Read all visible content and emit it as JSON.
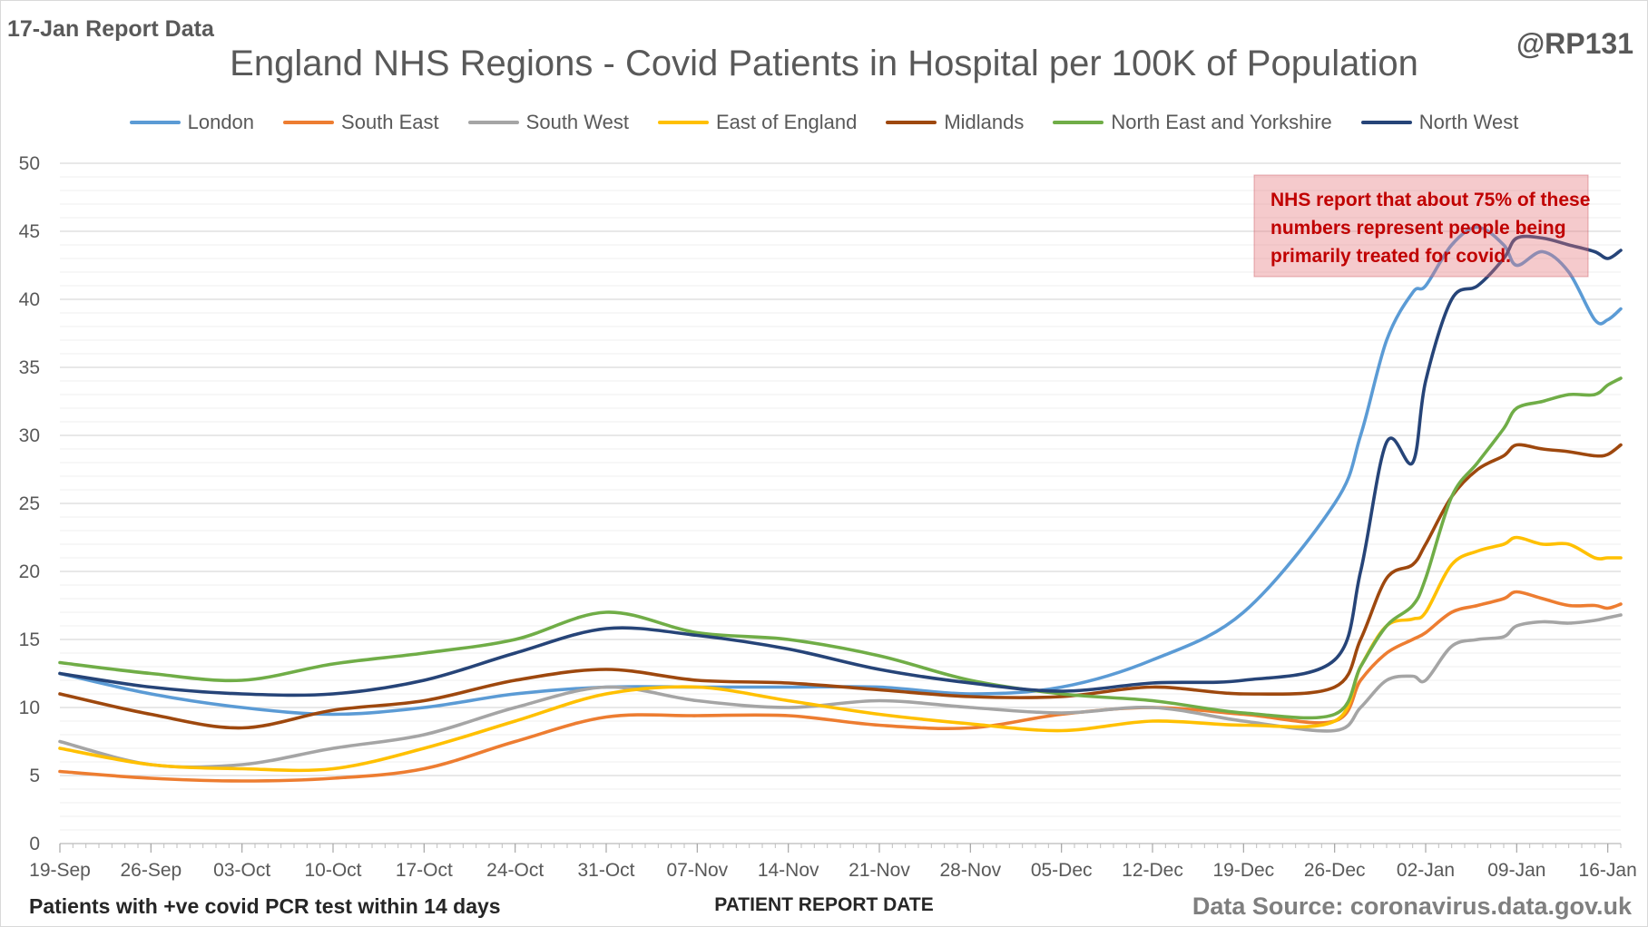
{
  "header": {
    "report_date": "17-Jan Report Data",
    "handle": "@RP131"
  },
  "footer": {
    "left_note": "Patients with +ve covid PCR test within 14 days",
    "source": "Data Source: coronavirus.data.gov.uk"
  },
  "chart_data": {
    "type": "line",
    "title": "England NHS Regions - Covid Patients in Hospital per 100K of Population",
    "xlabel": "PATIENT REPORT DATE",
    "ylabel": "",
    "ylim": [
      0,
      50
    ],
    "yticks": [
      0,
      5,
      10,
      15,
      20,
      25,
      30,
      35,
      40,
      45,
      50
    ],
    "grid": true,
    "minor_grid_step": 1,
    "legend_position": "top",
    "x_start": "2021-09-19",
    "x_end": "2022-01-17",
    "xtick_labels": [
      "19-Sep",
      "26-Sep",
      "03-Oct",
      "10-Oct",
      "17-Oct",
      "24-Oct",
      "31-Oct",
      "07-Nov",
      "14-Nov",
      "21-Nov",
      "28-Nov",
      "05-Dec",
      "12-Dec",
      "19-Dec",
      "26-Dec",
      "02-Jan",
      "09-Jan",
      "16-Jan"
    ],
    "x": [
      "2021-09-19",
      "2021-09-26",
      "2021-10-03",
      "2021-10-10",
      "2021-10-17",
      "2021-10-24",
      "2021-10-31",
      "2021-11-07",
      "2021-11-14",
      "2021-11-21",
      "2021-11-28",
      "2021-12-05",
      "2021-12-12",
      "2021-12-19",
      "2021-12-26",
      "2021-12-28",
      "2021-12-30",
      "2022-01-01",
      "2022-01-02",
      "2022-01-04",
      "2022-01-06",
      "2022-01-08",
      "2022-01-09",
      "2022-01-11",
      "2022-01-13",
      "2022-01-15",
      "2022-01-16",
      "2022-01-17"
    ],
    "series": [
      {
        "name": "London",
        "color": "#5b9bd5",
        "values": [
          12.5,
          11.0,
          10.0,
          9.5,
          10.0,
          11.0,
          11.5,
          11.5,
          11.5,
          11.5,
          11.0,
          11.5,
          13.5,
          17.0,
          25.0,
          30.0,
          37.0,
          40.5,
          41.0,
          44.0,
          45.3,
          44.0,
          42.5,
          43.5,
          42.0,
          38.5,
          38.5,
          39.3
        ]
      },
      {
        "name": "South East",
        "color": "#ed7d31",
        "values": [
          5.3,
          4.8,
          4.6,
          4.8,
          5.5,
          7.5,
          9.3,
          9.4,
          9.4,
          8.7,
          8.5,
          9.5,
          10.0,
          9.5,
          9.0,
          12.0,
          14.0,
          15.0,
          15.5,
          17.0,
          17.5,
          18.0,
          18.5,
          18.0,
          17.5,
          17.5,
          17.3,
          17.6
        ]
      },
      {
        "name": "South West",
        "color": "#a5a5a5",
        "values": [
          7.5,
          5.8,
          5.8,
          7.0,
          8.0,
          10.0,
          11.5,
          10.5,
          10.0,
          10.5,
          10.0,
          9.6,
          10.0,
          9.0,
          8.3,
          10.0,
          12.0,
          12.3,
          12.0,
          14.5,
          15.0,
          15.2,
          16.0,
          16.3,
          16.2,
          16.4,
          16.6,
          16.8
        ]
      },
      {
        "name": "East of England",
        "color": "#ffc000",
        "values": [
          7.0,
          5.8,
          5.5,
          5.5,
          7.0,
          9.0,
          11.0,
          11.5,
          10.5,
          9.5,
          8.8,
          8.3,
          9.0,
          8.7,
          9.0,
          13.0,
          16.0,
          16.5,
          17.0,
          20.5,
          21.5,
          22.0,
          22.5,
          22.0,
          22.0,
          21.0,
          21.0,
          21.0
        ]
      },
      {
        "name": "Midlands",
        "color": "#9e480e",
        "values": [
          11.0,
          9.5,
          8.5,
          9.8,
          10.5,
          12.0,
          12.8,
          12.0,
          11.8,
          11.3,
          10.8,
          10.8,
          11.5,
          11.0,
          11.5,
          15.0,
          19.5,
          20.5,
          22.0,
          25.5,
          27.5,
          28.5,
          29.3,
          29.0,
          28.8,
          28.5,
          28.6,
          29.3
        ]
      },
      {
        "name": "North East and Yorkshire",
        "color": "#70ad47",
        "values": [
          13.3,
          12.5,
          12.0,
          13.2,
          14.0,
          15.0,
          17.0,
          15.5,
          15.0,
          13.8,
          12.0,
          11.0,
          10.5,
          9.6,
          9.5,
          13.0,
          16.0,
          17.5,
          19.5,
          25.5,
          28.0,
          30.5,
          32.0,
          32.5,
          33.0,
          33.0,
          33.7,
          34.2
        ]
      },
      {
        "name": "North West",
        "color": "#264478",
        "values": [
          12.5,
          11.5,
          11.0,
          11.0,
          12.0,
          14.0,
          15.8,
          15.3,
          14.3,
          12.8,
          11.8,
          11.2,
          11.8,
          12.0,
          13.5,
          20.0,
          29.5,
          28.0,
          34.0,
          40.0,
          41.0,
          43.0,
          44.5,
          44.5,
          44.0,
          43.5,
          43.0,
          43.6
        ]
      }
    ],
    "annotations": [
      {
        "lines": [
          "NHS report that about 75% of these",
          "numbers represent people being",
          "primarily treated for covid."
        ]
      }
    ]
  }
}
